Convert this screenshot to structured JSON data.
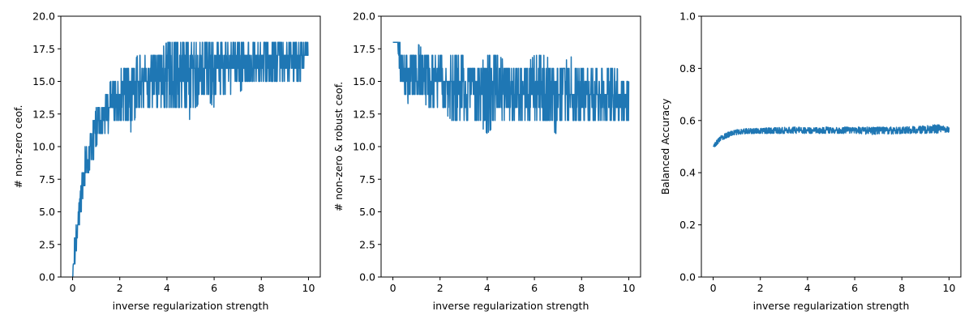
{
  "colors": {
    "series": "#1f77b4",
    "axis": "#000000",
    "background": "#ffffff"
  },
  "chart_data": [
    {
      "type": "line",
      "xlabel": "inverse regularization strength",
      "ylabel": "# non-zero ceof.",
      "xlim": [
        -0.5,
        10.5
      ],
      "ylim": [
        0,
        20
      ],
      "xticks": [
        0,
        2,
        4,
        6,
        8,
        10
      ],
      "xtick_labels": [
        "0",
        "2",
        "4",
        "6",
        "8",
        "10"
      ],
      "yticks": [
        0,
        2.5,
        5,
        7.5,
        10,
        12.5,
        15,
        17.5,
        20
      ],
      "ytick_labels": [
        "0.0",
        "2.5",
        "5.0",
        "7.5",
        "10.0",
        "12.5",
        "15.0",
        "17.5",
        "20.0"
      ],
      "grid": false,
      "series": [
        {
          "x": [
            0,
            0.1,
            0.2,
            0.3,
            0.4,
            0.5,
            0.6,
            0.7,
            0.8,
            0.9,
            1.0,
            1.2,
            1.4,
            1.6,
            1.8,
            2.0,
            2.25,
            2.5,
            2.75,
            3.0,
            3.5,
            4.0,
            4.5,
            5.0,
            5.5,
            6.0,
            6.5,
            7.0,
            7.5,
            8.0,
            8.5,
            9.0,
            9.5,
            10.0
          ],
          "y": [
            0,
            2,
            4,
            5.5,
            7,
            8,
            9,
            10,
            10.5,
            11,
            11.5,
            12,
            12.5,
            13,
            13.5,
            14,
            14.3,
            14.6,
            14.9,
            15,
            15.3,
            15.5,
            15.7,
            15.8,
            16,
            16.1,
            16.2,
            16.3,
            16.4,
            16.5,
            16.6,
            16.6,
            16.7,
            16.7
          ],
          "y_min": [
            0,
            1,
            2,
            4,
            5,
            7,
            7,
            8,
            9,
            9,
            10,
            11,
            11,
            11,
            12,
            12,
            12,
            11,
            13,
            13,
            13,
            13,
            13,
            12,
            14,
            13,
            14,
            14,
            15,
            15,
            15,
            15,
            15,
            15
          ],
          "y_max": [
            0,
            4,
            5,
            6,
            8,
            10,
            10,
            11,
            12,
            12,
            13,
            13,
            14,
            15,
            15,
            16,
            16,
            16,
            17,
            17,
            17,
            18,
            18,
            18,
            18,
            18,
            18,
            18,
            18,
            18,
            18,
            18,
            18,
            18
          ]
        }
      ]
    },
    {
      "type": "line",
      "xlabel": "inverse regularization strength",
      "ylabel": "# non-zero & robust ceof.",
      "xlim": [
        -0.5,
        10.5
      ],
      "ylim": [
        0,
        20
      ],
      "xticks": [
        0,
        2,
        4,
        6,
        8,
        10
      ],
      "xtick_labels": [
        "0",
        "2",
        "4",
        "6",
        "8",
        "10"
      ],
      "yticks": [
        0,
        2.5,
        5,
        7.5,
        10,
        12.5,
        15,
        17.5,
        20
      ],
      "ytick_labels": [
        "0.0",
        "2.5",
        "5.0",
        "7.5",
        "10.0",
        "12.5",
        "15.0",
        "17.5",
        "20.0"
      ],
      "grid": false,
      "series": [
        {
          "x": [
            0,
            0.2,
            0.3,
            0.4,
            0.5,
            0.7,
            1.0,
            1.5,
            2.0,
            2.5,
            3.0,
            3.5,
            4.0,
            4.5,
            5.0,
            5.5,
            6.0,
            6.5,
            6.9,
            7.0,
            7.1,
            7.5,
            8.0,
            8.5,
            9.0,
            9.5,
            10.0
          ],
          "y": [
            18,
            18,
            17,
            16.5,
            16,
            15.8,
            15.5,
            15.3,
            15,
            14.8,
            14.6,
            14.5,
            14.4,
            14.3,
            14.2,
            14.2,
            14.1,
            14.1,
            14,
            14,
            14,
            14,
            13.9,
            13.9,
            13.8,
            13.8,
            13.8
          ],
          "y_min": [
            18,
            18,
            15,
            15,
            14,
            13,
            14,
            13,
            13,
            12,
            12,
            12,
            11,
            12,
            12,
            12,
            12,
            12,
            11,
            10,
            12,
            12,
            12,
            12,
            12,
            12,
            12
          ],
          "y_max": [
            18,
            18,
            18,
            17,
            17,
            17,
            18,
            17,
            17,
            17,
            17,
            16,
            17,
            17,
            16,
            16,
            17,
            17,
            16,
            16,
            16,
            17,
            16,
            16,
            16,
            16,
            15
          ]
        }
      ]
    },
    {
      "type": "line",
      "xlabel": "inverse regularization strength",
      "ylabel": "Balanced Accuracy",
      "xlim": [
        -0.5,
        10.5
      ],
      "ylim": [
        0,
        1
      ],
      "xticks": [
        0,
        2,
        4,
        6,
        8,
        10
      ],
      "xtick_labels": [
        "0",
        "2",
        "4",
        "6",
        "8",
        "10"
      ],
      "yticks": [
        0,
        0.2,
        0.4,
        0.6,
        0.8,
        1.0
      ],
      "ytick_labels": [
        "0.0",
        "0.2",
        "0.4",
        "0.6",
        "0.8",
        "1.0"
      ],
      "grid": false,
      "series": [
        {
          "x": [
            0,
            0.1,
            0.2,
            0.3,
            0.5,
            0.75,
            1.0,
            1.5,
            2.0,
            3.0,
            4.0,
            5.0,
            6.0,
            7.0,
            8.0,
            9.0,
            9.5,
            10.0
          ],
          "y": [
            0.5,
            0.51,
            0.52,
            0.53,
            0.54,
            0.55,
            0.555,
            0.56,
            0.56,
            0.563,
            0.562,
            0.563,
            0.562,
            0.562,
            0.564,
            0.565,
            0.566,
            0.566
          ],
          "y_min": [
            0.5,
            0.5,
            0.51,
            0.52,
            0.53,
            0.54,
            0.545,
            0.55,
            0.55,
            0.55,
            0.55,
            0.55,
            0.55,
            0.545,
            0.55,
            0.55,
            0.55,
            0.555
          ],
          "y_max": [
            0.5,
            0.52,
            0.53,
            0.54,
            0.55,
            0.56,
            0.565,
            0.57,
            0.57,
            0.575,
            0.575,
            0.575,
            0.575,
            0.575,
            0.575,
            0.58,
            0.585,
            0.575
          ]
        }
      ]
    }
  ]
}
